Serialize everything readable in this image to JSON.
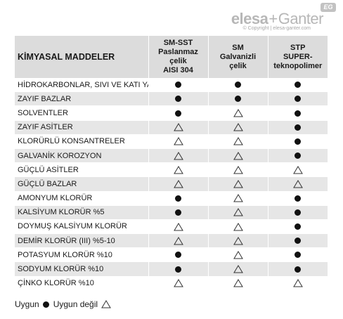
{
  "logo": {
    "brand_left": "elesa",
    "brand_plus": "+",
    "brand_right": "Ganter",
    "badge": "EG",
    "copyright": "© Copyright | elesa-ganter.com"
  },
  "table": {
    "headers": [
      {
        "lines": [
          "KİMYASAL MADDELER"
        ]
      },
      {
        "lines": [
          "SM-SST",
          "Paslanmaz çelik",
          "AISI 304"
        ]
      },
      {
        "lines": [
          "SM",
          "Galvanizli",
          "çelik"
        ]
      },
      {
        "lines": [
          "STP",
          "SUPER-",
          "teknopolimer"
        ]
      }
    ],
    "rows": [
      {
        "name": "HİDROKARBONLAR, SIVI VE KATI YAĞLAR",
        "values": [
          "dot",
          "dot",
          "dot"
        ]
      },
      {
        "name": "ZAYIF BAZLAR",
        "values": [
          "dot",
          "dot",
          "dot"
        ]
      },
      {
        "name": "SOLVENTLER",
        "values": [
          "dot",
          "triangle",
          "dot"
        ]
      },
      {
        "name": "ZAYIF ASİTLER",
        "values": [
          "triangle",
          "triangle",
          "dot"
        ]
      },
      {
        "name": "KLORÜRLÜ KONSANTRELER",
        "values": [
          "triangle",
          "triangle",
          "dot"
        ]
      },
      {
        "name": "GALVANİK KOROZYON",
        "values": [
          "triangle",
          "triangle",
          "dot"
        ]
      },
      {
        "name": "GÜÇLÜ ASİTLER",
        "values": [
          "triangle",
          "triangle",
          "triangle"
        ]
      },
      {
        "name": "GÜÇLÜ BAZLAR",
        "values": [
          "triangle",
          "triangle",
          "triangle"
        ]
      },
      {
        "name": "AMONYUM KLORÜR",
        "values": [
          "dot",
          "triangle",
          "dot"
        ]
      },
      {
        "name": "KALSİYUM KLORÜR %5",
        "values": [
          "dot",
          "triangle",
          "dot"
        ]
      },
      {
        "name": "DOYMUŞ KALSİYUM KLORÜR",
        "values": [
          "triangle",
          "triangle",
          "dot"
        ]
      },
      {
        "name": "DEMİR KLORÜR (III) %5-10",
        "values": [
          "triangle",
          "triangle",
          "dot"
        ]
      },
      {
        "name": "POTASYUM KLORÜR %10",
        "values": [
          "dot",
          "triangle",
          "dot"
        ]
      },
      {
        "name": "SODYUM KLORÜR %10",
        "values": [
          "dot",
          "triangle",
          "dot"
        ]
      },
      {
        "name": "ÇİNKO KLORÜR %10",
        "values": [
          "triangle",
          "triangle",
          "triangle"
        ]
      }
    ]
  },
  "legend": {
    "suitable_label": "Uygun",
    "suitable_icon": "filled-circle",
    "unsuitable_label": "Uygun değil",
    "unsuitable_icon": "outline-triangle"
  },
  "colors": {
    "header_bg": "#dcdcdc",
    "stripe_bg": "#e6e6e6",
    "logo_gray": "#b7b7b7"
  }
}
